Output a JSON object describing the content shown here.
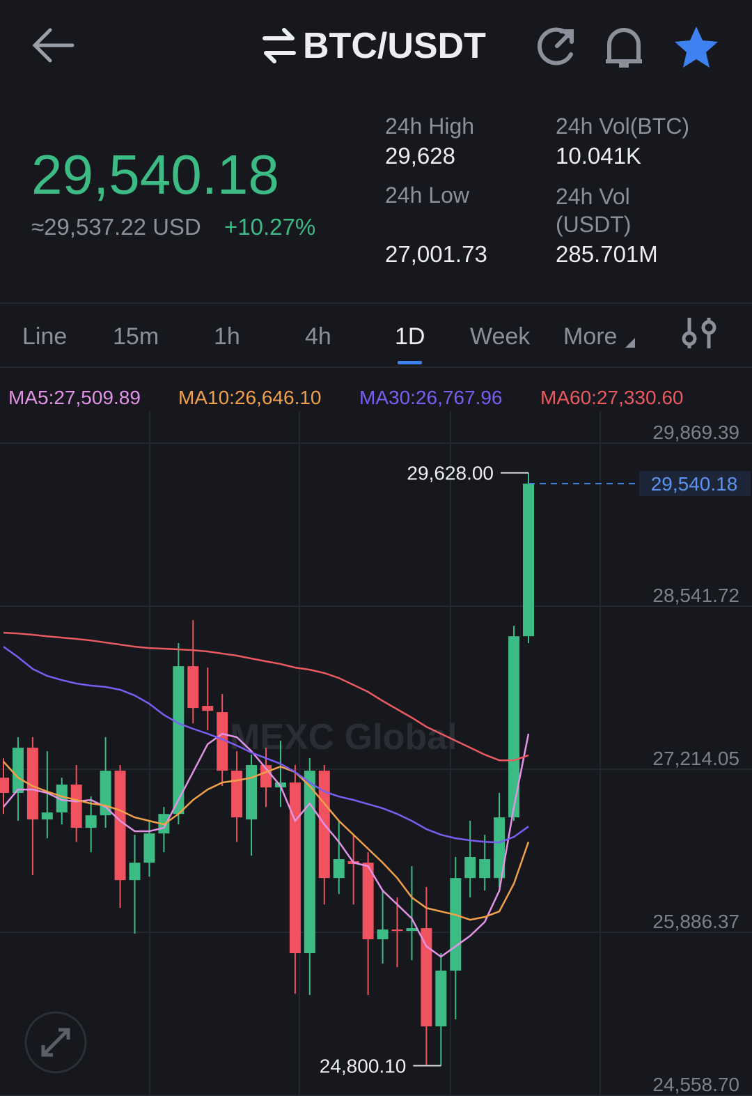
{
  "header": {
    "title": "BTC/USDT"
  },
  "ticker": {
    "price": "29,540.18",
    "usd": "≈29,537.22 USD",
    "change": "+10.27%",
    "stats": [
      {
        "label": "24h High",
        "value": "29,628"
      },
      {
        "label": "24h Vol(BTC)",
        "value": "10.041K"
      },
      {
        "label": "24h Low",
        "value": "27,001.73"
      },
      {
        "label": "24h Vol (USDT)",
        "value": "285.701M"
      }
    ]
  },
  "tabs": {
    "items": [
      "Line",
      "15m",
      "1h",
      "4h",
      "1D",
      "Week",
      "More"
    ],
    "active": "1D"
  },
  "chart_data": {
    "type": "candlestick",
    "watermark": "MEXC Global",
    "up_color": "#3dbb84",
    "down_color": "#f0525f",
    "ylim": [
      24558.7,
      30142
    ],
    "yticks": [
      {
        "value": 24558.7,
        "label": "24,558.70"
      },
      {
        "value": 25886.37,
        "label": "25,886.37"
      },
      {
        "value": 27214.05,
        "label": "27,214.05"
      },
      {
        "value": 28541.72,
        "label": "28,541.72"
      },
      {
        "value": 29869.39,
        "label": "29,869.39"
      }
    ],
    "open": [
      27145,
      27021,
      27389,
      26805,
      26862,
      27089,
      26737,
      26839,
      27202,
      26311,
      26453,
      26691,
      26850,
      28053,
      27730,
      27679,
      27202,
      26805,
      27248,
      27066,
      27106,
      25716,
      27202,
      26328,
      26465,
      26453,
      25829,
      25909,
      25897,
      25920,
      25120,
      25574,
      26328,
      26328,
      26328,
      26822,
      28297
    ],
    "high": [
      27304,
      27475,
      27475,
      27361,
      27145,
      27248,
      26992,
      27475,
      27248,
      26680,
      26794,
      26907,
      28241,
      28428,
      28042,
      27826,
      27361,
      27333,
      27389,
      27446,
      27248,
      27304,
      27248,
      26794,
      26680,
      26538,
      26226,
      26170,
      26425,
      26255,
      25716,
      26499,
      26794,
      26680,
      27021,
      28382,
      29628
    ],
    "low": [
      26850,
      26794,
      26351,
      26652,
      26765,
      26623,
      26538,
      26737,
      26084,
      25875,
      26340,
      26538,
      26765,
      27588,
      27531,
      27077,
      26623,
      26510,
      26907,
      26907,
      25386,
      25375,
      26113,
      26198,
      26113,
      25375,
      25631,
      25602,
      25659,
      24808,
      24800.1,
      25177,
      26170,
      26226,
      26255,
      26794,
      28241
    ],
    "close": [
      27021,
      27389,
      26805,
      26862,
      27089,
      26737,
      26839,
      27202,
      26311,
      26453,
      26691,
      26850,
      28053,
      27713,
      27690,
      27202,
      26822,
      27248,
      27066,
      27106,
      25716,
      27202,
      26328,
      26482,
      26442,
      25829,
      25909,
      25897,
      25920,
      25120,
      25574,
      26328,
      26499,
      26482,
      26822,
      28297,
      29540.18
    ],
    "high_label": {
      "value": 29628,
      "label": "29,628.00"
    },
    "low_label": {
      "value": 24800.1,
      "label": "24,800.10"
    },
    "last_price": {
      "value": 29540.18,
      "label": "29,540.18"
    },
    "series": [
      {
        "label": "MA5:27,509.89",
        "color": "#e293e6",
        "values": [
          26907,
          27049,
          27049,
          27021,
          26964,
          26952,
          26964,
          26907,
          26794,
          26709,
          26709,
          26737,
          26964,
          27191,
          27418,
          27503,
          27475,
          27361,
          27219,
          27077,
          26794,
          26935,
          26765,
          26623,
          26453,
          26425,
          26226,
          26113,
          25999,
          25772,
          25687,
          25772,
          25857,
          25971,
          26226,
          26907,
          27503
        ]
      },
      {
        "label": "MA10:26,646.10",
        "color": "#f2a04a",
        "values": [
          27276,
          27145,
          27077,
          27032,
          26992,
          26964,
          26935,
          26918,
          26879,
          26822,
          26794,
          26765,
          26850,
          26964,
          27049,
          27106,
          27123,
          27145,
          27191,
          27236,
          27191,
          27077,
          26935,
          26794,
          26680,
          26567,
          26453,
          26328,
          26170,
          26084,
          26056,
          26028,
          25988,
          26011,
          26056,
          26283,
          26623
        ]
      },
      {
        "label": "MA30:26,767.96",
        "color": "#7a5ef2",
        "values": [
          28212,
          28127,
          28031,
          27974,
          27940,
          27912,
          27895,
          27884,
          27861,
          27815,
          27747,
          27656,
          27588,
          27543,
          27503,
          27458,
          27407,
          27350,
          27304,
          27259,
          27191,
          27106,
          27032,
          26992,
          26964,
          26930,
          26896,
          26850,
          26794,
          26726,
          26680,
          26652,
          26635,
          26623,
          26618,
          26663,
          26748
        ]
      },
      {
        "label": "MA60:27,330.60",
        "color": "#ea5a60",
        "values": [
          28326,
          28320,
          28309,
          28297,
          28286,
          28275,
          28263,
          28246,
          28229,
          28212,
          28201,
          28196,
          28190,
          28184,
          28173,
          28156,
          28139,
          28116,
          28093,
          28071,
          28042,
          28025,
          27997,
          27957,
          27901,
          27844,
          27770,
          27702,
          27634,
          27560,
          27503,
          27446,
          27390,
          27333,
          27287,
          27287,
          27327
        ]
      }
    ]
  }
}
